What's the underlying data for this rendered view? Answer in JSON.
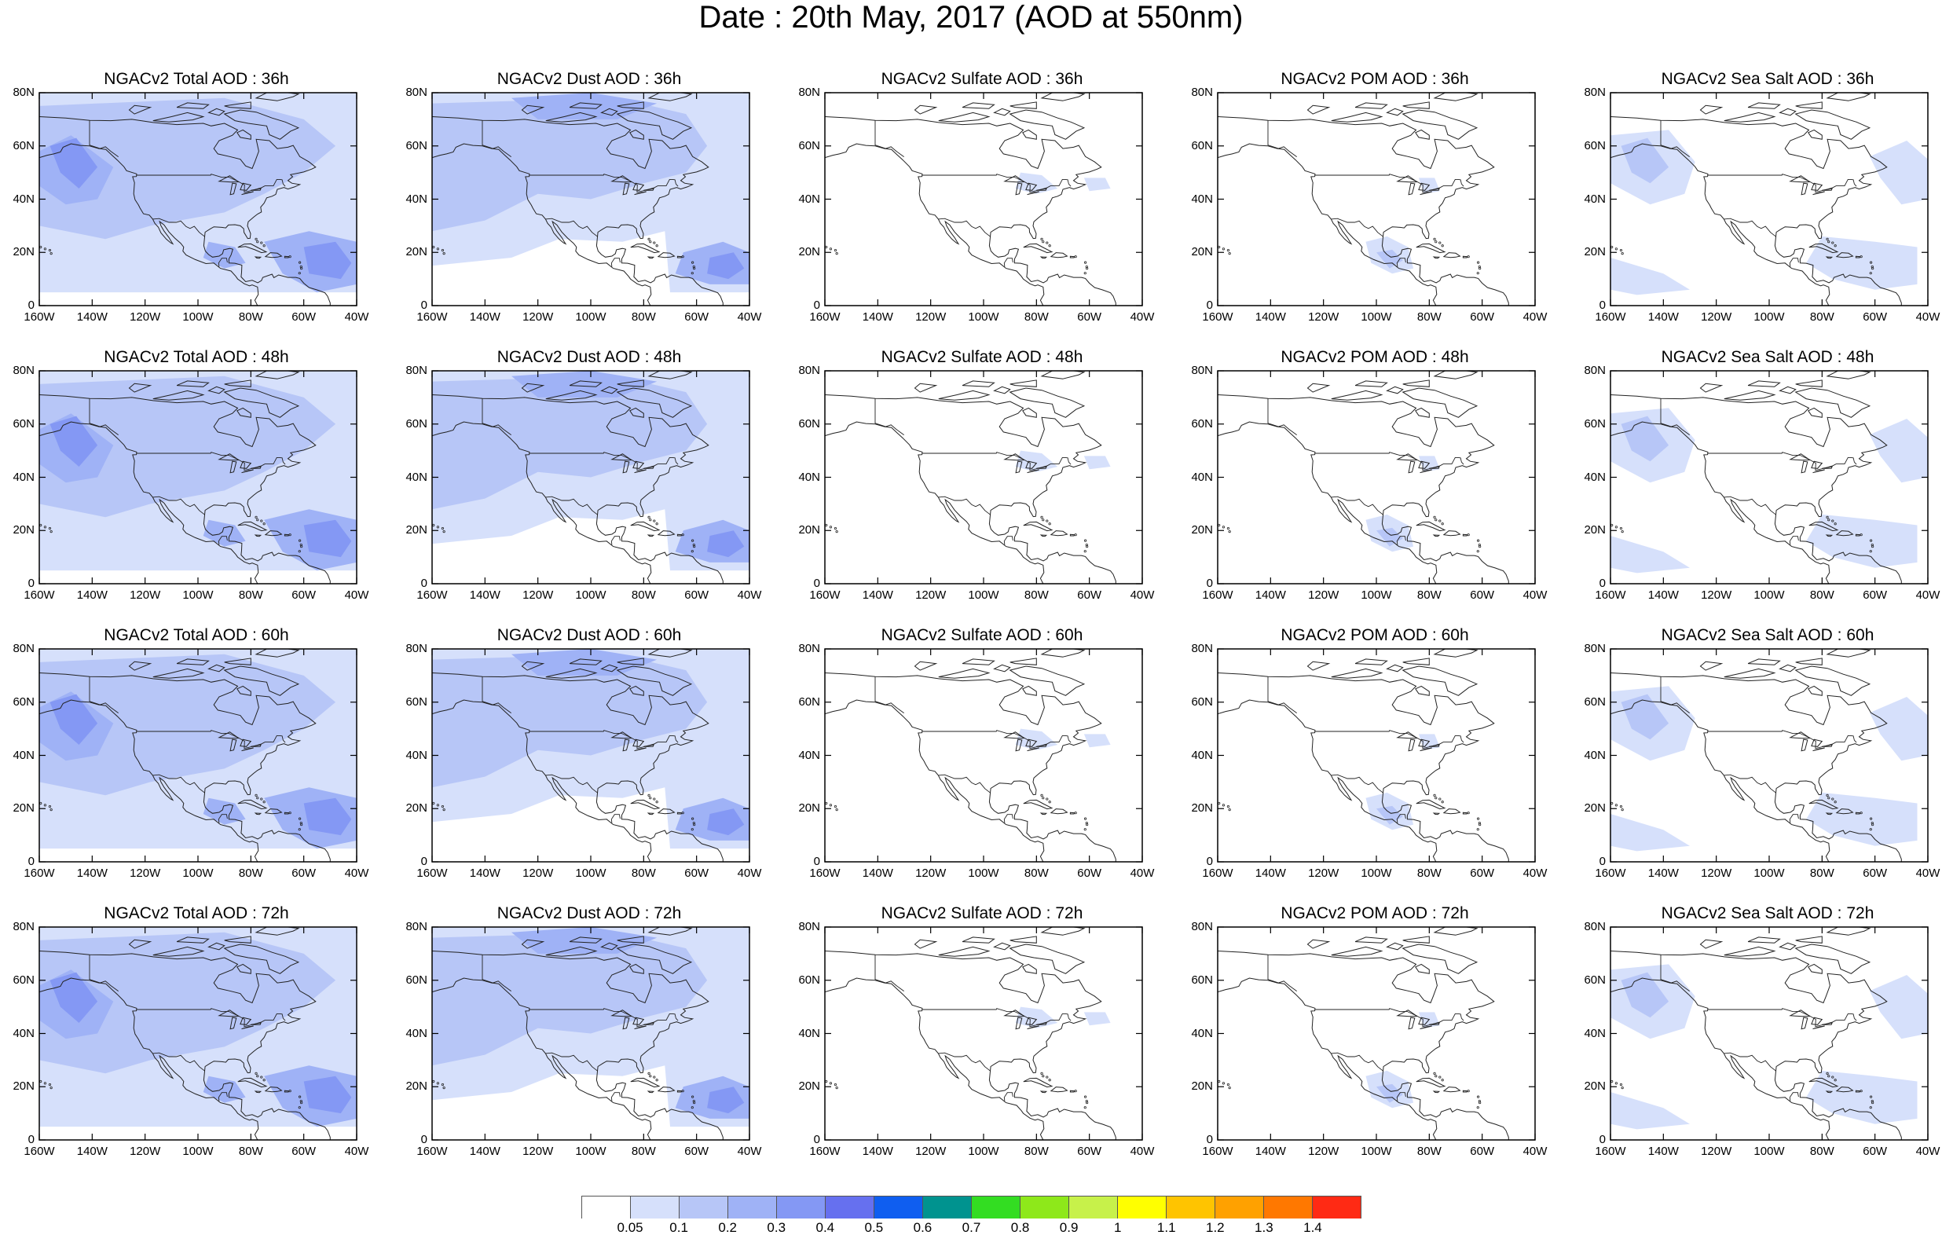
{
  "title": "Date : 20th May, 2017 (AOD at 550nm)",
  "lat_labels": [
    "80N",
    "60N",
    "40N",
    "20N",
    "0"
  ],
  "lon_labels": [
    "160W",
    "140W",
    "120W",
    "100W",
    "80W",
    "60W",
    "40W"
  ],
  "panels": [
    [
      {
        "title": "NGACv2 Total AOD : 36h",
        "species": "total"
      },
      {
        "title": "NGACv2 Dust AOD : 36h",
        "species": "dust"
      },
      {
        "title": "NGACv2 Sulfate AOD : 36h",
        "species": "sulfate"
      },
      {
        "title": "NGACv2 POM AOD : 36h",
        "species": "pom"
      },
      {
        "title": "NGACv2 Sea Salt AOD : 36h",
        "species": "seasalt"
      }
    ],
    [
      {
        "title": "NGACv2 Total AOD : 48h",
        "species": "total"
      },
      {
        "title": "NGACv2 Dust AOD : 48h",
        "species": "dust"
      },
      {
        "title": "NGACv2 Sulfate AOD : 48h",
        "species": "sulfate"
      },
      {
        "title": "NGACv2 POM AOD : 48h",
        "species": "pom"
      },
      {
        "title": "NGACv2 Sea Salt AOD : 48h",
        "species": "seasalt"
      }
    ],
    [
      {
        "title": "NGACv2 Total AOD : 60h",
        "species": "total"
      },
      {
        "title": "NGACv2 Dust AOD : 60h",
        "species": "dust"
      },
      {
        "title": "NGACv2 Sulfate AOD : 60h",
        "species": "sulfate"
      },
      {
        "title": "NGACv2 POM AOD : 60h",
        "species": "pom"
      },
      {
        "title": "NGACv2 Sea Salt AOD : 60h",
        "species": "seasalt"
      }
    ],
    [
      {
        "title": "NGACv2 Total AOD : 72h",
        "species": "total"
      },
      {
        "title": "NGACv2 Dust AOD : 72h",
        "species": "dust"
      },
      {
        "title": "NGACv2 Sulfate AOD : 72h",
        "species": "sulfate"
      },
      {
        "title": "NGACv2 POM AOD : 72h",
        "species": "pom"
      },
      {
        "title": "NGACv2 Sea Salt  AOD : 72h",
        "species": "seasalt"
      }
    ]
  ],
  "colorbar": {
    "colors": [
      "#ffffff",
      "#d6e0fb",
      "#b7c6f7",
      "#9fb2f6",
      "#8498f4",
      "#6670ef",
      "#0f5ef0",
      "#00938f",
      "#33dd22",
      "#8ee81a",
      "#c7f14a",
      "#ffff00",
      "#ffc400",
      "#ffa100",
      "#ff7800",
      "#ff2a14"
    ],
    "labels": [
      "0.05",
      "0.1",
      "0.2",
      "0.3",
      "0.4",
      "0.5",
      "0.6",
      "0.7",
      "0.8",
      "0.9",
      "1",
      "1.1",
      "1.2",
      "1.3",
      "1.4"
    ]
  }
}
